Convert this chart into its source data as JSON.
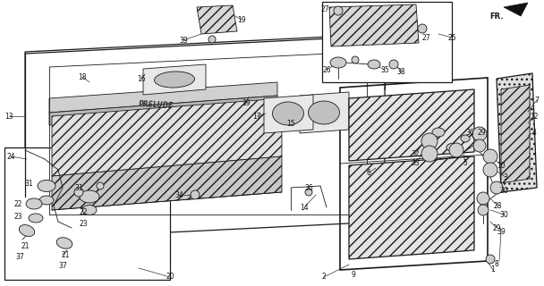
{
  "bg_color": "#ffffff",
  "fig_width": 6.08,
  "fig_height": 3.2,
  "dpi": 100,
  "line_color": "#1a1a1a",
  "text_color": "#111111"
}
